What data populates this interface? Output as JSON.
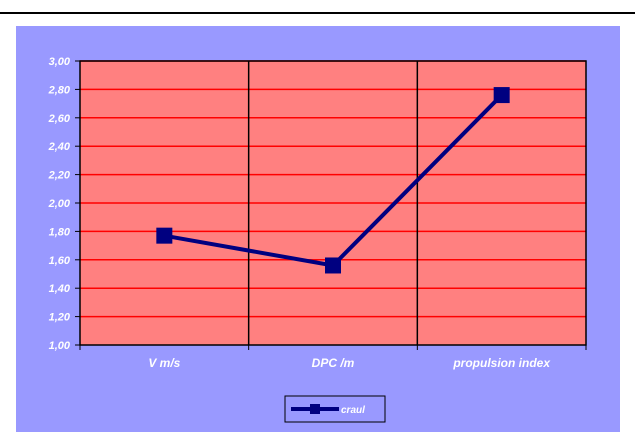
{
  "chart_data": {
    "type": "line",
    "categories": [
      "V  m/s",
      "DPC /m",
      "propulsion index"
    ],
    "series": [
      {
        "name": "craul",
        "values": [
          1.77,
          1.56,
          2.76
        ]
      }
    ],
    "ylim": [
      1.0,
      3.0
    ],
    "yticks": [
      "1,00",
      "1,20",
      "1,40",
      "1,60",
      "1,80",
      "2,00",
      "2,20",
      "2,40",
      "2,60",
      "2,80",
      "3,00"
    ],
    "grid": true,
    "legend_position": "bottom-center",
    "colors": {
      "chart_background": "#9999ff",
      "plot_background": "#ff8080",
      "gridline": "#ff0000",
      "axis": "#000000",
      "series": "#000080",
      "text": "#ffffff"
    }
  }
}
